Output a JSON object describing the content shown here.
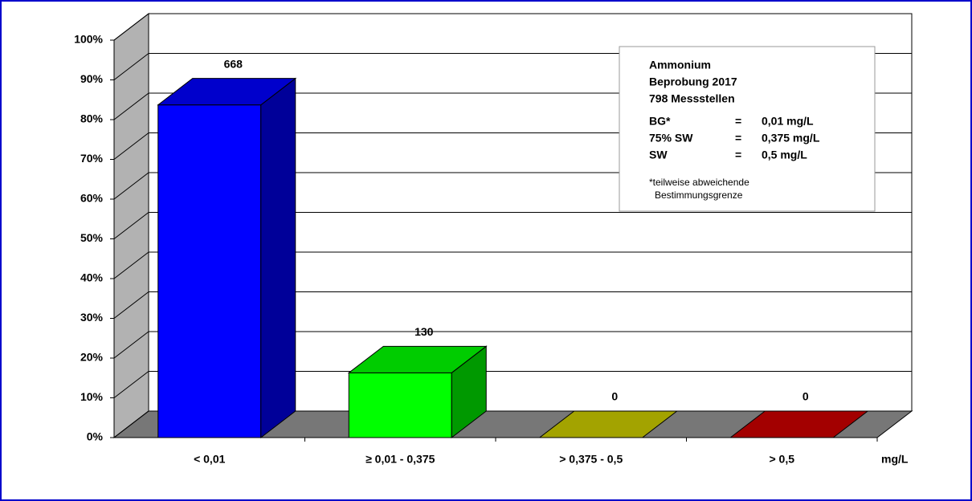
{
  "chart_data": {
    "type": "bar3d",
    "categories": [
      "< 0,01",
      "≥ 0,01 - 0,375",
      "> 0,375 - 0,5",
      "> 0,5"
    ],
    "values": [
      83.7,
      16.3,
      0,
      0
    ],
    "counts": [
      668,
      130,
      0,
      0
    ],
    "colors": [
      "#0000ff",
      "#00ff00",
      "#cccc00",
      "#cc0000"
    ],
    "x_unit": "mg/L",
    "ylim": [
      0,
      100
    ],
    "yticks": [
      {
        "value": 0,
        "label": "0%"
      },
      {
        "value": 10,
        "label": "10%"
      },
      {
        "value": 20,
        "label": "20%"
      },
      {
        "value": 30,
        "label": "30%"
      },
      {
        "value": 40,
        "label": "40%"
      },
      {
        "value": 50,
        "label": "50%"
      },
      {
        "value": 60,
        "label": "60%"
      },
      {
        "value": 70,
        "label": "70%"
      },
      {
        "value": 80,
        "label": "80%"
      },
      {
        "value": 90,
        "label": "90%"
      },
      {
        "value": 100,
        "label": "100%"
      }
    ],
    "grid": true,
    "info_box": {
      "title_lines": [
        "Ammonium",
        "Beprobung 2017",
        "798 Messstellen"
      ],
      "rows": [
        [
          "BG*",
          "=",
          "0,01 mg/L"
        ],
        [
          "75% SW",
          "=",
          "0,375 mg/L"
        ],
        [
          "SW",
          "=",
          "0,5 mg/L"
        ]
      ],
      "footnote": [
        "*teilweise abweichende",
        "Bestimmungsgrenze"
      ]
    }
  }
}
